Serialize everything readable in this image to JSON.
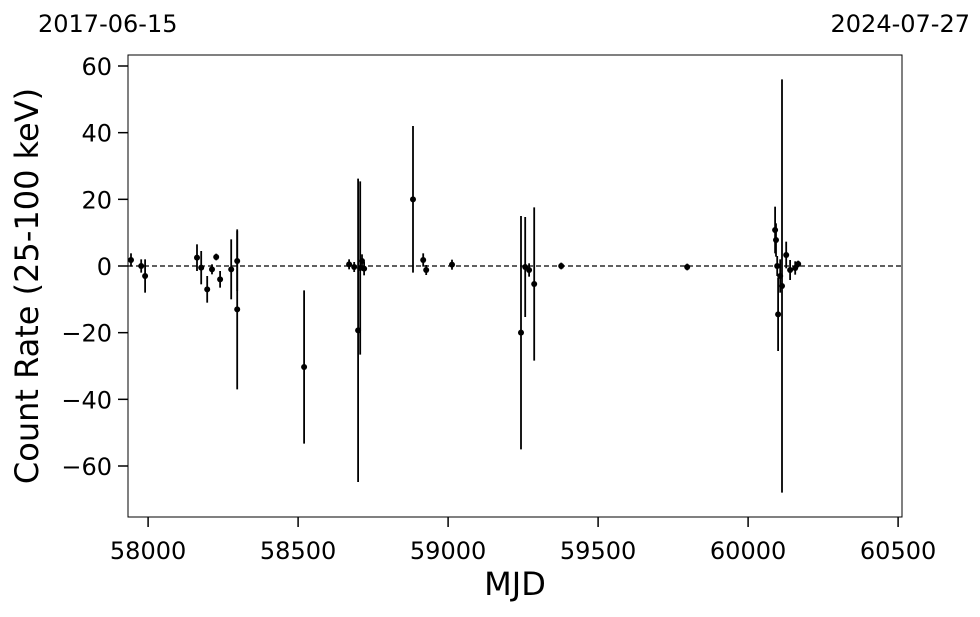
{
  "chart_data": {
    "type": "errorbar",
    "top_left_label": "2017-06-15",
    "top_right_label": "2024-07-27",
    "x_label": "MJD",
    "y_label": "Count Rate (25-100 keV)",
    "xlim": [
      57933,
      60513
    ],
    "ylim": [
      -75.3,
      63.3
    ],
    "xticks": [
      58000,
      58500,
      59000,
      59500,
      60000,
      60500
    ],
    "yticks": [
      {
        "value": -60,
        "label": "−60"
      },
      {
        "value": -40,
        "label": "−40"
      },
      {
        "value": -20,
        "label": "−20"
      },
      0,
      20,
      40,
      60
    ],
    "reference_line": 0,
    "color": "#000000",
    "x": [
      57943,
      57977,
      57990,
      58163,
      58177,
      58197,
      58213,
      58227,
      58240,
      58277,
      58297,
      58297,
      58520,
      58670,
      58687,
      58700,
      58707,
      58713,
      58720,
      58883,
      58917,
      58927,
      59013,
      59243,
      59257,
      59270,
      59287,
      59377,
      59797,
      60090,
      60093,
      60097,
      60100,
      60107,
      60113,
      60127,
      60140,
      60157,
      60167
    ],
    "values": [
      1.8,
      0,
      -3,
      2.5,
      -0.5,
      -7,
      -1,
      2.7,
      -4,
      -1,
      1.5,
      -13,
      -30.3,
      0.5,
      -0.3,
      -19.3,
      -0.6,
      1.5,
      -0.8,
      20,
      1.8,
      -1.2,
      0.4,
      -20,
      -0.3,
      -1.2,
      -5.4,
      0,
      -0.3,
      10.8,
      7.8,
      0,
      -14.5,
      -3,
      -6,
      3.3,
      -1.2,
      -0.6,
      0.6
    ],
    "errors": [
      2,
      2,
      5,
      4,
      5,
      4,
      1.5,
      1,
      2.5,
      9,
      9,
      24,
      23,
      1.5,
      1.5,
      45.5,
      26,
      2,
      2,
      22,
      2,
      1.5,
      1.5,
      35,
      15,
      2,
      23,
      1,
      1,
      7,
      5,
      3,
      11,
      5,
      62,
      4,
      3,
      2,
      1
    ]
  }
}
